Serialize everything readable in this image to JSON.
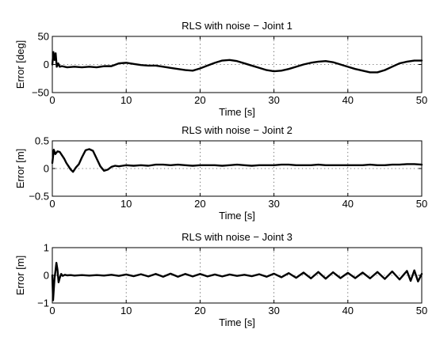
{
  "chart_data": [
    {
      "type": "line",
      "title": "RLS with noise − Joint 1",
      "xlabel": "Time [s]",
      "ylabel": "Error [deg]",
      "xlim": [
        0,
        50
      ],
      "ylim": [
        -50,
        50
      ],
      "xticks": [
        "0",
        "10",
        "20",
        "30",
        "40",
        "50"
      ],
      "yticks": [
        "50",
        "0",
        "−50"
      ],
      "xtick_values": [
        0,
        10,
        20,
        30,
        40,
        50
      ],
      "ytick_values": [
        50,
        0,
        -50
      ],
      "grid": true,
      "series": [
        {
          "x": [
            0,
            0.15,
            0.3,
            0.45,
            0.6,
            0.8,
            1.0,
            1.3,
            2,
            3,
            4,
            5,
            6,
            7,
            8,
            9,
            10,
            11,
            12,
            13,
            14,
            15,
            16,
            17,
            18,
            19,
            20,
            21,
            22,
            23,
            24,
            25,
            26,
            27,
            28,
            29,
            30,
            31,
            32,
            33,
            34,
            35,
            36,
            37,
            38,
            39,
            40,
            41,
            42,
            43,
            44,
            45,
            46,
            47,
            48,
            49,
            50
          ],
          "y": [
            0,
            22,
            8,
            20,
            -4,
            2,
            -4,
            -3,
            -5,
            -4,
            -5,
            -4,
            -5,
            -3,
            -3,
            2,
            3,
            1,
            -1,
            -2,
            -2,
            -4,
            -6,
            -8,
            -10,
            -11,
            -7,
            -2,
            3,
            7,
            8,
            6,
            2,
            -2,
            -6,
            -10,
            -12,
            -11,
            -8,
            -4,
            0,
            3,
            5,
            6,
            4,
            0,
            -4,
            -8,
            -11,
            -14,
            -14,
            -10,
            -4,
            2,
            5,
            7,
            7
          ]
        }
      ]
    },
    {
      "type": "line",
      "title": "RLS with noise − Joint 2",
      "xlabel": "Time [s]",
      "ylabel": "Error [m]",
      "xlim": [
        0,
        50
      ],
      "ylim": [
        -0.5,
        0.5
      ],
      "xticks": [
        "0",
        "10",
        "20",
        "30",
        "40",
        "50"
      ],
      "yticks": [
        "0.5",
        "0",
        "−0.5"
      ],
      "xtick_values": [
        0,
        10,
        20,
        30,
        40,
        50
      ],
      "ytick_values": [
        0.5,
        0,
        -0.5
      ],
      "grid": true,
      "series": [
        {
          "x": [
            0,
            0.2,
            0.4,
            0.7,
            1.0,
            1.3,
            1.6,
            1.9,
            2.2,
            2.5,
            2.8,
            3.2,
            3.6,
            4.0,
            4.5,
            5.0,
            5.5,
            6.0,
            6.5,
            7.0,
            7.5,
            8.0,
            8.5,
            9.0,
            9.5,
            10,
            11,
            12,
            13,
            14,
            15,
            16,
            17,
            18,
            19,
            20,
            21,
            22,
            23,
            24,
            25,
            26,
            27,
            28,
            29,
            30,
            31,
            32,
            33,
            34,
            35,
            36,
            37,
            38,
            39,
            40,
            41,
            42,
            43,
            44,
            45,
            46,
            47,
            48,
            49,
            50
          ],
          "y": [
            0.1,
            0.34,
            0.26,
            0.31,
            0.3,
            0.24,
            0.18,
            0.1,
            0.04,
            -0.02,
            -0.06,
            0.02,
            0.08,
            0.2,
            0.33,
            0.35,
            0.32,
            0.18,
            0.04,
            -0.04,
            -0.02,
            0.03,
            0.05,
            0.04,
            0.05,
            0.06,
            0.05,
            0.06,
            0.05,
            0.07,
            0.07,
            0.06,
            0.07,
            0.06,
            0.05,
            0.06,
            0.06,
            0.06,
            0.05,
            0.06,
            0.07,
            0.06,
            0.05,
            0.06,
            0.06,
            0.06,
            0.07,
            0.07,
            0.06,
            0.06,
            0.06,
            0.07,
            0.06,
            0.06,
            0.06,
            0.06,
            0.06,
            0.06,
            0.07,
            0.06,
            0.06,
            0.07,
            0.07,
            0.08,
            0.08,
            0.07
          ]
        }
      ]
    },
    {
      "type": "line",
      "title": "RLS with noise − Joint 3",
      "xlabel": "Time [s]",
      "ylabel": "Error [m]",
      "xlim": [
        0,
        50
      ],
      "ylim": [
        -1,
        1
      ],
      "xticks": [
        "0",
        "10",
        "20",
        "30",
        "40",
        "50"
      ],
      "yticks": [
        "1",
        "0",
        "−1"
      ],
      "xtick_values": [
        0,
        10,
        20,
        30,
        40,
        50
      ],
      "ytick_values": [
        1,
        0,
        -1
      ],
      "grid": true,
      "series": [
        {
          "x": [
            0,
            0.1,
            0.2,
            0.3,
            0.4,
            0.55,
            0.7,
            0.85,
            1.0,
            1.2,
            1.4,
            1.7,
            2.0,
            2.5,
            3,
            4,
            5,
            6,
            7,
            8,
            9,
            10,
            11,
            12,
            13,
            14,
            15,
            16,
            17,
            18,
            19,
            20,
            21,
            22,
            23,
            24,
            25,
            26,
            27,
            28,
            29,
            30,
            31,
            32,
            33,
            34,
            35,
            36,
            37,
            38,
            39,
            40,
            41,
            42,
            43,
            44,
            45,
            46,
            47,
            48,
            48.5,
            49,
            49.5,
            50
          ],
          "y": [
            0,
            -0.9,
            -0.5,
            -0.1,
            0.1,
            0.45,
            0.2,
            -0.25,
            -0.1,
            0.05,
            -0.02,
            0.02,
            0,
            0.01,
            -0.01,
            0.01,
            -0.01,
            0.01,
            -0.01,
            0.02,
            -0.02,
            0.03,
            -0.03,
            0.04,
            -0.04,
            0.05,
            -0.05,
            0.06,
            -0.05,
            0.05,
            -0.04,
            0.05,
            -0.04,
            0.03,
            -0.04,
            0.03,
            -0.02,
            0.02,
            -0.03,
            0.04,
            -0.05,
            0.06,
            -0.07,
            0.08,
            -0.09,
            0.1,
            -0.11,
            0.12,
            -0.12,
            0.11,
            -0.1,
            0.09,
            -0.1,
            0.1,
            -0.11,
            0.12,
            -0.13,
            0.14,
            -0.15,
            0.16,
            -0.2,
            0.18,
            -0.22,
            0.05
          ]
        }
      ]
    }
  ]
}
